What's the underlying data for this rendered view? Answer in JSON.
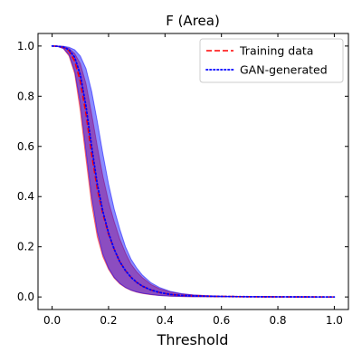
{
  "chart_data": {
    "type": "line",
    "title": "F (Area)",
    "xlabel": "Threshold",
    "ylabel": "",
    "xlim": [
      -0.05,
      1.05
    ],
    "ylim": [
      -0.05,
      1.05
    ],
    "x_ticks": [
      0.0,
      0.2,
      0.4,
      0.6,
      0.8,
      1.0
    ],
    "y_ticks": [
      0.0,
      0.2,
      0.4,
      0.6,
      0.8,
      1.0
    ],
    "x_tick_labels": [
      "0.0",
      "0.2",
      "0.4",
      "0.6",
      "0.8",
      "1.0"
    ],
    "y_tick_labels": [
      "0.0",
      "0.2",
      "0.4",
      "0.6",
      "0.8",
      "1.0"
    ],
    "grid": false,
    "legend_position": "top-right",
    "x": [
      0.0,
      0.02,
      0.04,
      0.06,
      0.08,
      0.1,
      0.12,
      0.14,
      0.16,
      0.18,
      0.2,
      0.22,
      0.24,
      0.26,
      0.28,
      0.3,
      0.32,
      0.35,
      0.38,
      0.42,
      0.46,
      0.5,
      0.55,
      0.6,
      0.7,
      0.8,
      0.9,
      1.0
    ],
    "series": [
      {
        "name": "Training data",
        "color": "#ff0000",
        "line_style": "dashed",
        "band_color": "#ff0000",
        "values": [
          1.0,
          0.999,
          0.995,
          0.98,
          0.94,
          0.86,
          0.73,
          0.57,
          0.43,
          0.33,
          0.25,
          0.19,
          0.14,
          0.105,
          0.078,
          0.058,
          0.043,
          0.028,
          0.018,
          0.01,
          0.006,
          0.004,
          0.003,
          0.002,
          0.001,
          0.0005,
          0.0002,
          0.0
        ],
        "band_lower": [
          1.0,
          0.998,
          0.99,
          0.96,
          0.89,
          0.74,
          0.55,
          0.37,
          0.24,
          0.16,
          0.11,
          0.075,
          0.052,
          0.037,
          0.026,
          0.019,
          0.014,
          0.009,
          0.006,
          0.003,
          0.002,
          0.001,
          0.0008,
          0.0005,
          0.0002,
          0.0001,
          0.0,
          0.0
        ],
        "band_upper": [
          1.0,
          1.0,
          0.998,
          0.99,
          0.97,
          0.93,
          0.85,
          0.73,
          0.6,
          0.48,
          0.38,
          0.3,
          0.23,
          0.175,
          0.13,
          0.1,
          0.077,
          0.05,
          0.033,
          0.02,
          0.012,
          0.008,
          0.005,
          0.003,
          0.0015,
          0.0008,
          0.0003,
          0.0
        ]
      },
      {
        "name": "GAN-generated",
        "color": "#0000ff",
        "line_style": "dotted",
        "band_color": "#0000ff",
        "values": [
          1.0,
          0.999,
          0.996,
          0.985,
          0.955,
          0.885,
          0.76,
          0.6,
          0.45,
          0.34,
          0.255,
          0.19,
          0.14,
          0.105,
          0.078,
          0.058,
          0.043,
          0.028,
          0.018,
          0.01,
          0.006,
          0.004,
          0.003,
          0.002,
          0.001,
          0.0005,
          0.0002,
          0.0
        ],
        "band_lower": [
          1.0,
          0.998,
          0.99,
          0.965,
          0.9,
          0.77,
          0.58,
          0.4,
          0.26,
          0.17,
          0.115,
          0.078,
          0.054,
          0.038,
          0.027,
          0.02,
          0.015,
          0.01,
          0.006,
          0.003,
          0.002,
          0.001,
          0.0008,
          0.0005,
          0.0002,
          0.0001,
          0.0,
          0.0
        ],
        "band_upper": [
          1.0,
          1.0,
          0.999,
          0.995,
          0.985,
          0.96,
          0.91,
          0.82,
          0.7,
          0.57,
          0.45,
          0.35,
          0.27,
          0.2,
          0.15,
          0.115,
          0.087,
          0.057,
          0.038,
          0.022,
          0.013,
          0.008,
          0.005,
          0.003,
          0.0015,
          0.0008,
          0.0003,
          0.0
        ]
      }
    ]
  }
}
